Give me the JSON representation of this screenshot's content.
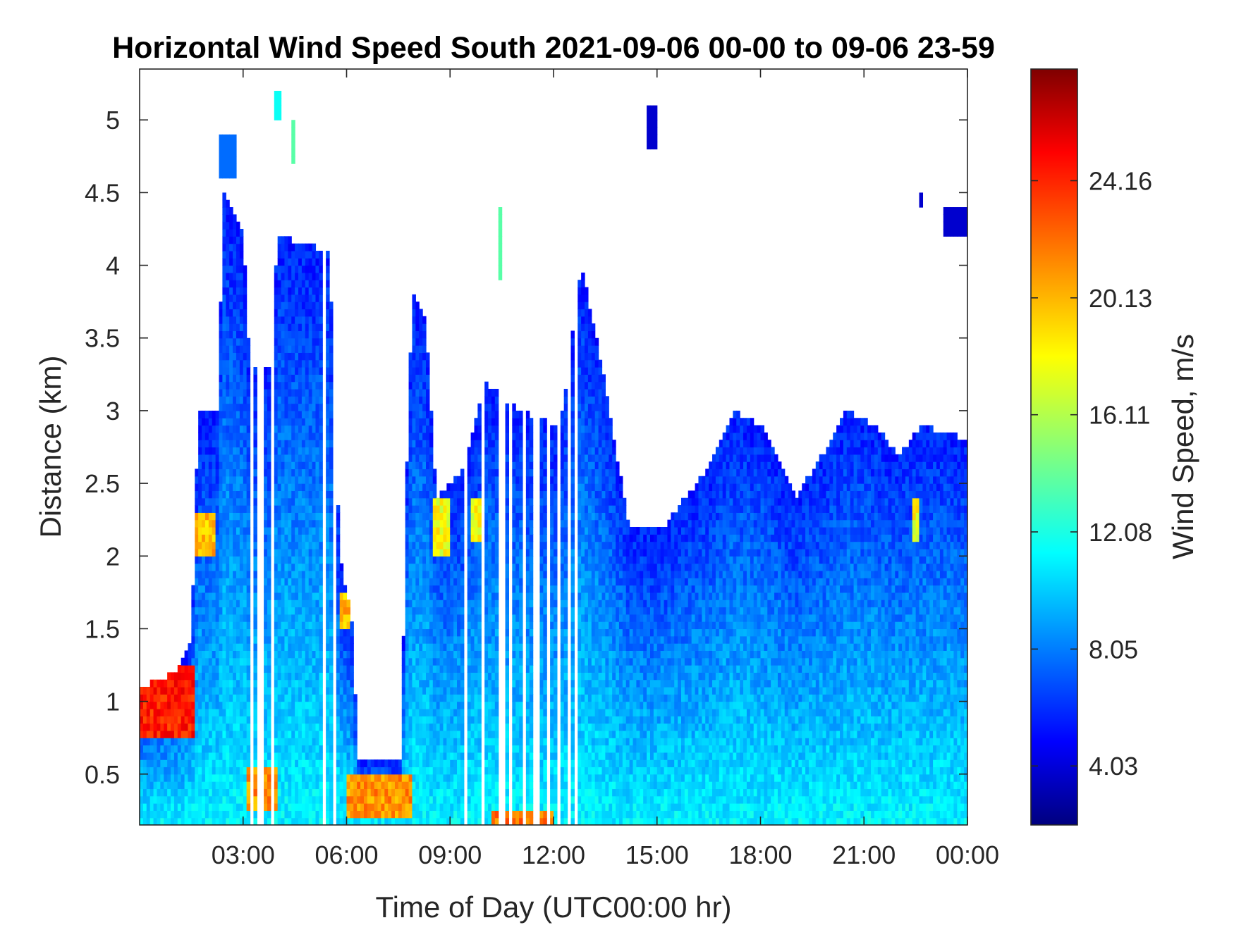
{
  "chart_data": {
    "type": "heatmap",
    "title": "Horizontal Wind Speed South 2021-09-06 00-00 to 09-06 23-59",
    "xlabel": "Time of Day (UTC00:00 hr)",
    "ylabel": "Distance (km)",
    "x_unit": "hours",
    "xlim": [
      0,
      24
    ],
    "ylim": [
      0.15,
      5.35
    ],
    "x_ticks": [
      {
        "value": 3,
        "label": "03:00"
      },
      {
        "value": 6,
        "label": "06:00"
      },
      {
        "value": 9,
        "label": "09:00"
      },
      {
        "value": 12,
        "label": "12:00"
      },
      {
        "value": 15,
        "label": "15:00"
      },
      {
        "value": 18,
        "label": "18:00"
      },
      {
        "value": 21,
        "label": "21:00"
      },
      {
        "value": 24,
        "label": "00:00"
      }
    ],
    "y_ticks": [
      {
        "value": 0.5,
        "label": "0.5"
      },
      {
        "value": 1,
        "label": "1"
      },
      {
        "value": 1.5,
        "label": "1.5"
      },
      {
        "value": 2,
        "label": "2"
      },
      {
        "value": 2.5,
        "label": "2.5"
      },
      {
        "value": 3,
        "label": "3"
      },
      {
        "value": 3.5,
        "label": "3.5"
      },
      {
        "value": 4,
        "label": "4"
      },
      {
        "value": 4.5,
        "label": "4.5"
      },
      {
        "value": 5,
        "label": "5"
      }
    ],
    "colorbar": {
      "label": "Wind Speed, m/s",
      "colormap": "jet",
      "clim": [
        2.0,
        28.0
      ],
      "ticks": [
        {
          "value": 4.03,
          "label": "4.03"
        },
        {
          "value": 8.05,
          "label": "8.05"
        },
        {
          "value": 12.08,
          "label": "12.08"
        },
        {
          "value": 16.11,
          "label": "16.11"
        },
        {
          "value": 20.13,
          "label": "20.13"
        },
        {
          "value": 24.16,
          "label": "24.16"
        }
      ]
    },
    "grid": false,
    "profile_top_km": [
      {
        "t": 0.0,
        "top": 1.1
      },
      {
        "t": 1.0,
        "top": 1.2
      },
      {
        "t": 1.5,
        "top": 1.4
      },
      {
        "t": 1.7,
        "top": 3.0
      },
      {
        "t": 2.3,
        "top": 3.0
      },
      {
        "t": 2.4,
        "top": 4.5
      },
      {
        "t": 3.0,
        "top": 4.2
      },
      {
        "t": 3.2,
        "top": 3.3
      },
      {
        "t": 3.8,
        "top": 3.3
      },
      {
        "t": 4.0,
        "top": 4.2
      },
      {
        "t": 5.5,
        "top": 4.1
      },
      {
        "t": 5.8,
        "top": 2.0
      },
      {
        "t": 6.2,
        "top": 1.5
      },
      {
        "t": 6.3,
        "top": 0.6
      },
      {
        "t": 7.6,
        "top": 0.6
      },
      {
        "t": 7.7,
        "top": 2.3
      },
      {
        "t": 7.9,
        "top": 3.8
      },
      {
        "t": 8.3,
        "top": 3.6
      },
      {
        "t": 8.6,
        "top": 2.4
      },
      {
        "t": 9.4,
        "top": 2.6
      },
      {
        "t": 10.0,
        "top": 3.2
      },
      {
        "t": 11.0,
        "top": 3.0
      },
      {
        "t": 12.2,
        "top": 2.9
      },
      {
        "t": 12.8,
        "top": 4.0
      },
      {
        "t": 13.4,
        "top": 3.3
      },
      {
        "t": 13.9,
        "top": 2.6
      },
      {
        "t": 14.2,
        "top": 2.2
      },
      {
        "t": 15.2,
        "top": 2.2
      },
      {
        "t": 15.8,
        "top": 2.4
      },
      {
        "t": 16.5,
        "top": 2.6
      },
      {
        "t": 17.2,
        "top": 3.0
      },
      {
        "t": 18.0,
        "top": 2.9
      },
      {
        "t": 19.0,
        "top": 2.4
      },
      {
        "t": 19.8,
        "top": 2.7
      },
      {
        "t": 20.5,
        "top": 3.0
      },
      {
        "t": 21.3,
        "top": 2.9
      },
      {
        "t": 22.0,
        "top": 2.7
      },
      {
        "t": 22.7,
        "top": 2.9
      },
      {
        "t": 24.0,
        "top": 2.8
      }
    ],
    "gaps_hours": [
      [
        3.2,
        3.35
      ],
      [
        3.45,
        3.6
      ],
      [
        3.85,
        3.95
      ],
      [
        5.3,
        5.4
      ],
      [
        5.6,
        5.7
      ],
      [
        9.35,
        9.45
      ],
      [
        9.9,
        10.0
      ],
      [
        10.4,
        10.55
      ],
      [
        10.7,
        10.8
      ],
      [
        11.1,
        11.2
      ],
      [
        11.4,
        11.55
      ],
      [
        11.75,
        11.85
      ],
      [
        12.05,
        12.2
      ],
      [
        12.35,
        12.45
      ],
      [
        12.6,
        12.7
      ]
    ],
    "hot_patches": [
      {
        "t0": 0.0,
        "t1": 1.6,
        "z0": 0.75,
        "z1": 1.25,
        "speed": 24
      },
      {
        "t0": 1.5,
        "t1": 2.2,
        "z0": 2.0,
        "z1": 2.3,
        "speed": 20
      },
      {
        "t0": 3.1,
        "t1": 4.0,
        "z0": 0.25,
        "z1": 0.55,
        "speed": 21
      },
      {
        "t0": 5.8,
        "t1": 6.1,
        "z0": 1.5,
        "z1": 1.75,
        "speed": 20
      },
      {
        "t0": 6.0,
        "t1": 7.9,
        "z0": 0.2,
        "z1": 0.5,
        "speed": 21
      },
      {
        "t0": 8.5,
        "t1": 9.0,
        "z0": 2.0,
        "z1": 2.4,
        "speed": 18
      },
      {
        "t0": 9.6,
        "t1": 10.0,
        "z0": 2.1,
        "z1": 2.4,
        "speed": 18
      },
      {
        "t0": 10.2,
        "t1": 12.0,
        "z0": 0.15,
        "z1": 0.25,
        "speed": 22
      },
      {
        "t0": 22.4,
        "t1": 22.6,
        "z0": 2.1,
        "z1": 2.4,
        "speed": 18
      }
    ],
    "isolated_patches": [
      {
        "t0": 2.3,
        "t1": 2.8,
        "z0": 4.6,
        "z1": 4.9,
        "speed": 8
      },
      {
        "t0": 3.9,
        "t1": 4.1,
        "z0": 5.0,
        "z1": 5.2,
        "speed": 12
      },
      {
        "t0": 4.4,
        "t1": 4.5,
        "z0": 4.7,
        "z1": 5.0,
        "speed": 14
      },
      {
        "t0": 10.4,
        "t1": 10.5,
        "z0": 3.9,
        "z1": 4.4,
        "speed": 14
      },
      {
        "t0": 14.7,
        "t1": 14.95,
        "z0": 4.8,
        "z1": 5.1,
        "speed": 4
      },
      {
        "t0": 22.6,
        "t1": 22.7,
        "z0": 4.4,
        "z1": 4.5,
        "speed": 4
      },
      {
        "t0": 23.3,
        "t1": 24.0,
        "z0": 4.2,
        "z1": 4.4,
        "speed": 4
      }
    ]
  }
}
